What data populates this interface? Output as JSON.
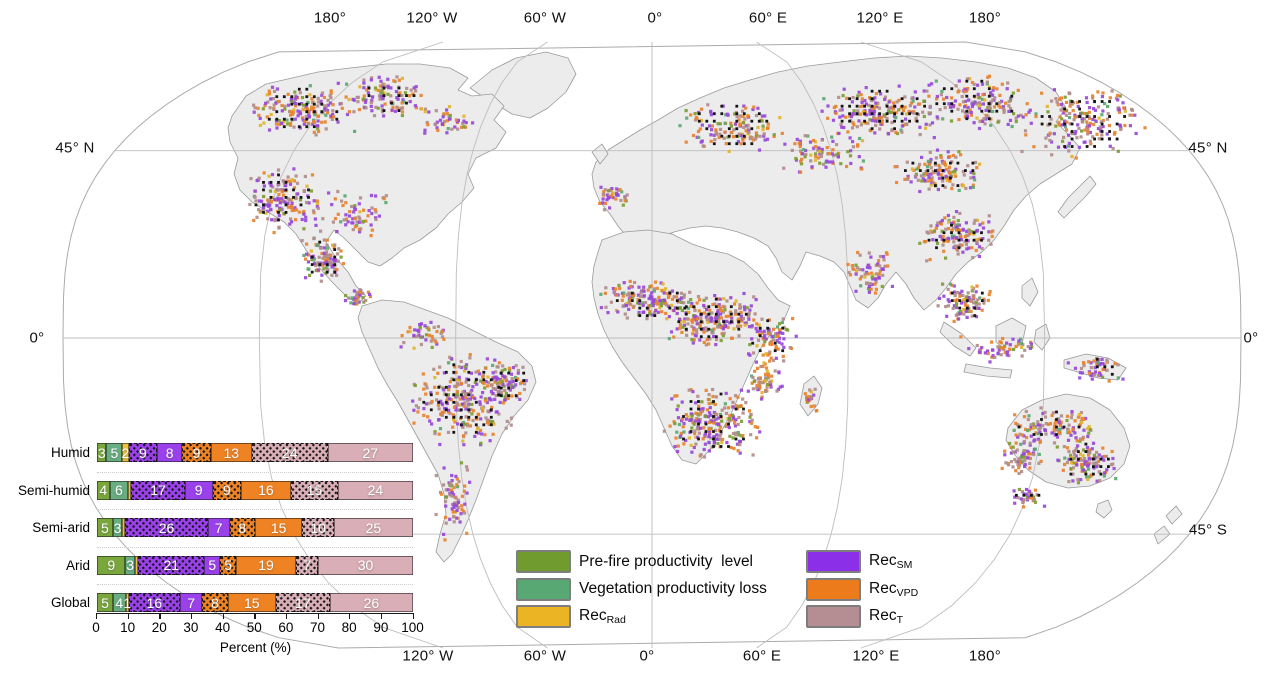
{
  "map": {
    "lon_top": [
      "180°",
      "120° W",
      "60° W",
      "0°",
      "60° E",
      "120° E",
      "180°"
    ],
    "lon_bottom": [
      "120° W",
      "60° W",
      "0°",
      "60° E",
      "120° E",
      "180°"
    ],
    "lat_left": [
      "45° N",
      "0°"
    ],
    "lat_right": [
      "45° N",
      "0°",
      "45° S"
    ]
  },
  "chart_data": {
    "type": "bar",
    "stacked": true,
    "orientation": "horizontal",
    "categories": [
      "Humid",
      "Semi-humid",
      "Semi-arid",
      "Arid",
      "Global"
    ],
    "segments_order": [
      "prefire",
      "loss",
      "rad",
      "sm_sig",
      "sm",
      "vpd_sig",
      "vpd",
      "t_sig",
      "t"
    ],
    "segment_names": {
      "prefire": "Pre-fire productivity level",
      "loss": "Vegetation productivity loss",
      "rad": "RecRad",
      "sm_sig": "RecSM (dotted / significant)",
      "sm": "RecSM",
      "vpd_sig": "RecVPD (dotted / significant)",
      "vpd": "RecVPD",
      "t_sig": "RecT (dotted / significant)",
      "t": "RecT"
    },
    "hatched_segments": [
      "sm_sig",
      "vpd_sig",
      "t_sig"
    ],
    "rows": [
      {
        "category": "Humid",
        "values": [
          3,
          5,
          2,
          9,
          8,
          9,
          13,
          24,
          27
        ],
        "labels": [
          "3",
          "5",
          "2",
          "9",
          "8",
          "9",
          "13",
          "24",
          "27"
        ]
      },
      {
        "category": "Semi-humid",
        "values": [
          4,
          6,
          1,
          17,
          9,
          9,
          16,
          15,
          24
        ],
        "labels": [
          "4",
          "6",
          "",
          "17",
          "9",
          "9",
          "16",
          "15",
          "24"
        ]
      },
      {
        "category": "Semi-arid",
        "values": [
          5,
          3,
          1,
          26,
          7,
          8,
          15,
          10,
          25
        ],
        "labels": [
          "5",
          "3",
          "",
          "26",
          "7",
          "8",
          "15",
          "10",
          "25"
        ]
      },
      {
        "category": "Arid",
        "values": [
          9,
          3,
          1,
          21,
          5,
          5,
          19,
          7,
          30
        ],
        "labels": [
          "9",
          "3",
          "",
          "21",
          "5",
          "5",
          "19",
          "7",
          "30"
        ]
      },
      {
        "category": "Global",
        "values": [
          5,
          4,
          1,
          16,
          7,
          8,
          15,
          17,
          26
        ],
        "labels": [
          "5",
          "4",
          "1",
          "16",
          "7",
          "8",
          "15",
          "17",
          "26"
        ]
      }
    ],
    "xlabel": "Percent (%)",
    "xticks": [
      "0",
      "10",
      "20",
      "30",
      "40",
      "50",
      "60",
      "70",
      "80",
      "90",
      "100"
    ],
    "xlim": [
      0,
      100
    ],
    "legend_position": "bottom-center, two columns"
  },
  "legend": {
    "columns": [
      {
        "items": [
          {
            "text": "Pre-fire productivity  level",
            "sub": "",
            "color_key": "prefire"
          },
          {
            "text": "Vegetation productivity loss",
            "sub": "",
            "color_key": "loss"
          },
          {
            "text": "Rec",
            "sub": "Rad",
            "color_key": "rad"
          }
        ]
      },
      {
        "items": [
          {
            "text": "Rec",
            "sub": "SM",
            "color_key": "sm"
          },
          {
            "text": "Rec",
            "sub": "VPD",
            "color_key": "vpd"
          },
          {
            "text": "Rec",
            "sub": "T",
            "color_key": "t"
          }
        ]
      }
    ]
  },
  "colors": {
    "legend": {
      "prefire": "#6f9b2f",
      "loss": "#58a873",
      "rad": "#eab425",
      "sm": "#8b2fe8",
      "vpd": "#ec7b1c",
      "t": "#b48e92"
    },
    "bar": {
      "prefire": "#7aa73c",
      "loss": "#68ae80",
      "rad": "#edc23c",
      "sm_sig": "#9a41ec",
      "sm": "#9a41ec",
      "vpd_sig": "#ef8323",
      "vpd": "#ef8323",
      "t_sig": "#d9aeb6",
      "t": "#d9aeb6"
    },
    "map_pixels": {
      "sm": "#9748d8",
      "vpd": "#e8822c",
      "t": "#b18c8a",
      "prefire": "#7d9c33",
      "loss": "#5aa873",
      "rad": "#e0b52e"
    },
    "significance_dot": "#141414",
    "land": "#ececec",
    "coast": "#9a9a9a",
    "graticule": "#bdbdbd",
    "ocean": "#ffffff"
  }
}
